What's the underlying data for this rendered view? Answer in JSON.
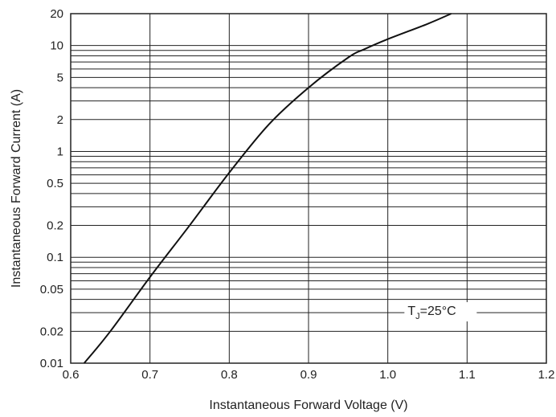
{
  "chart_data": {
    "type": "line",
    "title": "",
    "xlabel": "Instantaneous Forward Voltage (V)",
    "ylabel": "Instantaneous Forward Current (A)",
    "x_scale": "linear",
    "y_scale": "log",
    "xlim": [
      0.6,
      1.2
    ],
    "ylim": [
      0.01,
      20
    ],
    "grid": true,
    "x_ticks": [
      0.6,
      0.7,
      0.8,
      0.9,
      1.0,
      1.1,
      1.2
    ],
    "x_tick_labels": [
      "0.6",
      "0.7",
      "0.8",
      "0.9",
      "1.0",
      "1.1",
      "1.2"
    ],
    "y_ticks": [
      0.01,
      0.02,
      0.05,
      0.1,
      0.2,
      0.5,
      1,
      2,
      5,
      10,
      20
    ],
    "y_tick_labels": [
      "0.01",
      "0.02",
      "0.05",
      "0.1",
      "0.2",
      "0.5",
      "1",
      "2",
      "5",
      "10",
      "20"
    ],
    "annotation": {
      "text_main": "T",
      "text_sub": "J",
      "text_tail": "=25°C"
    },
    "colors": {
      "line": "#111111",
      "grid": "#222222",
      "text": "#222222"
    },
    "series": [
      {
        "x": [
          0.617,
          0.65,
          0.7,
          0.75,
          0.8,
          0.85,
          0.9,
          0.95,
          0.97,
          1.0,
          1.05,
          1.08
        ],
        "y": [
          0.01,
          0.02,
          0.065,
          0.2,
          0.63,
          1.8,
          4.0,
          7.7,
          9.2,
          11.5,
          16.0,
          20.0
        ]
      }
    ]
  }
}
